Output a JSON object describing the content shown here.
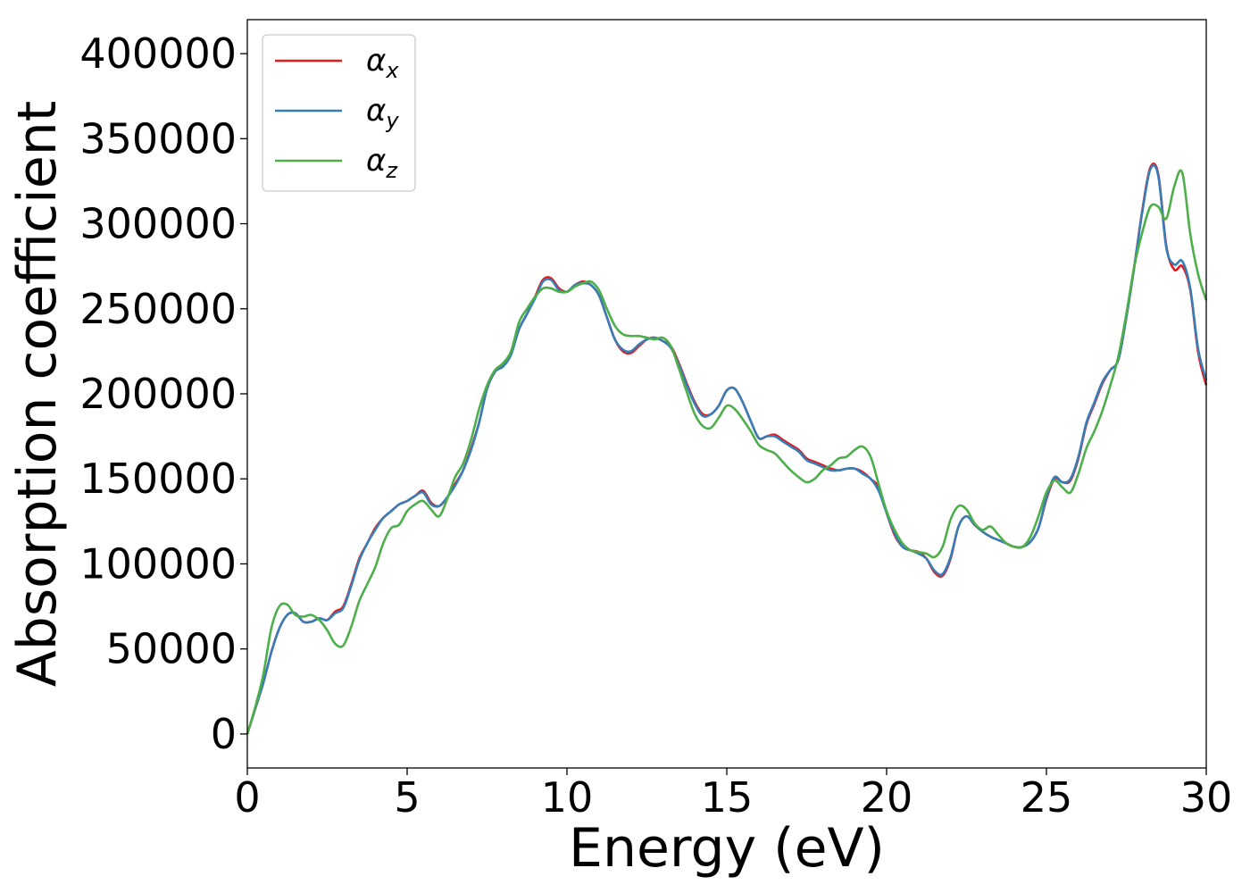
{
  "chart_data": {
    "type": "line",
    "title": "",
    "xlabel": "Energy (eV)",
    "ylabel": "Absorption coefficient",
    "xlim": [
      0,
      30
    ],
    "ylim": [
      -20000,
      420000
    ],
    "x_ticks": [
      0,
      5,
      10,
      15,
      20,
      25,
      30
    ],
    "x_tick_labels": [
      "0",
      "5",
      "10",
      "15",
      "20",
      "25",
      "30"
    ],
    "y_ticks": [
      0,
      50000,
      100000,
      150000,
      200000,
      250000,
      300000,
      350000,
      400000
    ],
    "y_tick_labels": [
      "0",
      "50000",
      "100000",
      "150000",
      "200000",
      "250000",
      "300000",
      "350000",
      "400000"
    ],
    "grid": false,
    "legend_position": "top-left",
    "x": [
      0,
      0.25,
      0.5,
      0.75,
      1.0,
      1.25,
      1.5,
      1.75,
      2.0,
      2.25,
      2.5,
      2.75,
      3.0,
      3.25,
      3.5,
      3.75,
      4.0,
      4.25,
      4.5,
      4.75,
      5.0,
      5.25,
      5.5,
      5.75,
      6.0,
      6.25,
      6.5,
      6.75,
      7.0,
      7.25,
      7.5,
      7.75,
      8.0,
      8.25,
      8.5,
      8.75,
      9.0,
      9.25,
      9.5,
      9.75,
      10.0,
      10.25,
      10.5,
      10.75,
      11.0,
      11.25,
      11.5,
      11.75,
      12.0,
      12.25,
      12.5,
      12.75,
      13.0,
      13.25,
      13.5,
      13.75,
      14.0,
      14.25,
      14.5,
      14.75,
      15.0,
      15.25,
      15.5,
      15.75,
      16.0,
      16.25,
      16.5,
      16.75,
      17.0,
      17.25,
      17.5,
      17.75,
      18.0,
      18.25,
      18.5,
      18.75,
      19.0,
      19.25,
      19.5,
      19.75,
      20.0,
      20.25,
      20.5,
      20.75,
      21.0,
      21.25,
      21.5,
      21.75,
      22.0,
      22.25,
      22.5,
      22.75,
      23.0,
      23.25,
      23.5,
      23.75,
      24.0,
      24.25,
      24.5,
      24.75,
      25.0,
      25.25,
      25.5,
      25.75,
      26.0,
      26.25,
      26.5,
      26.75,
      27.0,
      27.25,
      27.5,
      27.75,
      28.0,
      28.25,
      28.5,
      28.75,
      29.0,
      29.25,
      29.5,
      29.75,
      30.0
    ],
    "series": [
      {
        "name": "α_x",
        "symbol": "α",
        "subscript": "x",
        "color": "#e41a1c",
        "values": [
          0,
          15000,
          30000,
          48000,
          62000,
          70000,
          71000,
          66000,
          66000,
          68000,
          67000,
          72000,
          75000,
          88000,
          103000,
          112000,
          121000,
          127000,
          131000,
          135000,
          137000,
          140000,
          143000,
          136000,
          134000,
          139000,
          147000,
          155000,
          168000,
          183000,
          203000,
          213000,
          217000,
          224000,
          238000,
          247000,
          257000,
          267000,
          268000,
          262000,
          260000,
          264000,
          266000,
          264000,
          258000,
          245000,
          232000,
          225000,
          224000,
          228000,
          232000,
          233000,
          231000,
          228000,
          218000,
          206000,
          195000,
          188000,
          188000,
          193000,
          202000,
          203000,
          195000,
          184000,
          174000,
          175000,
          176000,
          173000,
          170000,
          167000,
          162000,
          160000,
          158000,
          156000,
          155000,
          156000,
          156000,
          154000,
          150000,
          145000,
          130000,
          117000,
          110000,
          108000,
          107000,
          103000,
          95000,
          93000,
          103000,
          122000,
          128000,
          123000,
          119000,
          116000,
          114000,
          112000,
          110000,
          110000,
          113000,
          121000,
          138000,
          150000,
          148000,
          149000,
          162000,
          182000,
          194000,
          206000,
          214000,
          220000,
          245000,
          275000,
          308000,
          333000,
          329000,
          287000,
          273000,
          275000,
          261000,
          224000,
          205000
        ]
      },
      {
        "name": "α_y",
        "symbol": "α",
        "subscript": "y",
        "color": "#377eb8",
        "values": [
          0,
          15000,
          30000,
          48000,
          62000,
          70000,
          71000,
          66000,
          66000,
          68000,
          67000,
          71000,
          74000,
          87000,
          102000,
          112000,
          120000,
          127000,
          131000,
          135000,
          137000,
          140000,
          142000,
          135000,
          134000,
          139000,
          146000,
          155000,
          167000,
          183000,
          203000,
          213000,
          216000,
          223000,
          238000,
          247000,
          256000,
          266000,
          267000,
          261000,
          260000,
          264000,
          265000,
          264000,
          258000,
          245000,
          232000,
          226000,
          225000,
          229000,
          232000,
          233000,
          231000,
          227000,
          217000,
          205000,
          194000,
          187000,
          188000,
          193000,
          202000,
          203000,
          195000,
          184000,
          174000,
          175000,
          175000,
          172000,
          169000,
          166000,
          161000,
          159000,
          157000,
          155000,
          155000,
          156000,
          156000,
          153000,
          150000,
          143000,
          130000,
          118000,
          110000,
          108000,
          106000,
          103000,
          96000,
          94000,
          104000,
          122000,
          128000,
          123000,
          119000,
          116000,
          114000,
          112000,
          110000,
          110000,
          113000,
          121000,
          139000,
          151000,
          148000,
          150000,
          163000,
          183000,
          195000,
          207000,
          214000,
          220000,
          245000,
          275000,
          307000,
          332000,
          328000,
          286000,
          276000,
          278000,
          262000,
          226000,
          208000
        ]
      },
      {
        "name": "α_z",
        "symbol": "α",
        "subscript": "z",
        "color": "#4daf4a",
        "values": [
          0,
          16000,
          35000,
          62000,
          75000,
          76000,
          70000,
          69000,
          70000,
          67000,
          61000,
          53000,
          52000,
          63000,
          78000,
          88000,
          98000,
          112000,
          121000,
          123000,
          131000,
          135000,
          137000,
          132000,
          128000,
          138000,
          151000,
          159000,
          173000,
          191000,
          205000,
          214000,
          218000,
          225000,
          242000,
          250000,
          257000,
          262000,
          262000,
          260000,
          260000,
          263000,
          265000,
          266000,
          261000,
          250000,
          240000,
          235000,
          234000,
          234000,
          233000,
          232000,
          233000,
          228000,
          215000,
          201000,
          188000,
          181000,
          180000,
          186000,
          193000,
          191000,
          185000,
          178000,
          170000,
          167000,
          165000,
          160000,
          155000,
          151000,
          148000,
          150000,
          155000,
          158000,
          162000,
          163000,
          167000,
          169000,
          163000,
          147000,
          131000,
          120000,
          112000,
          108000,
          107000,
          106000,
          104000,
          110000,
          126000,
          134000,
          132000,
          124000,
          120000,
          122000,
          117000,
          112000,
          110000,
          110000,
          116000,
          128000,
          142000,
          149000,
          145000,
          142000,
          153000,
          168000,
          178000,
          190000,
          205000,
          222000,
          247000,
          275000,
          295000,
          310000,
          310000,
          303000,
          322000,
          330000,
          294000,
          270000,
          255000
        ]
      }
    ]
  }
}
